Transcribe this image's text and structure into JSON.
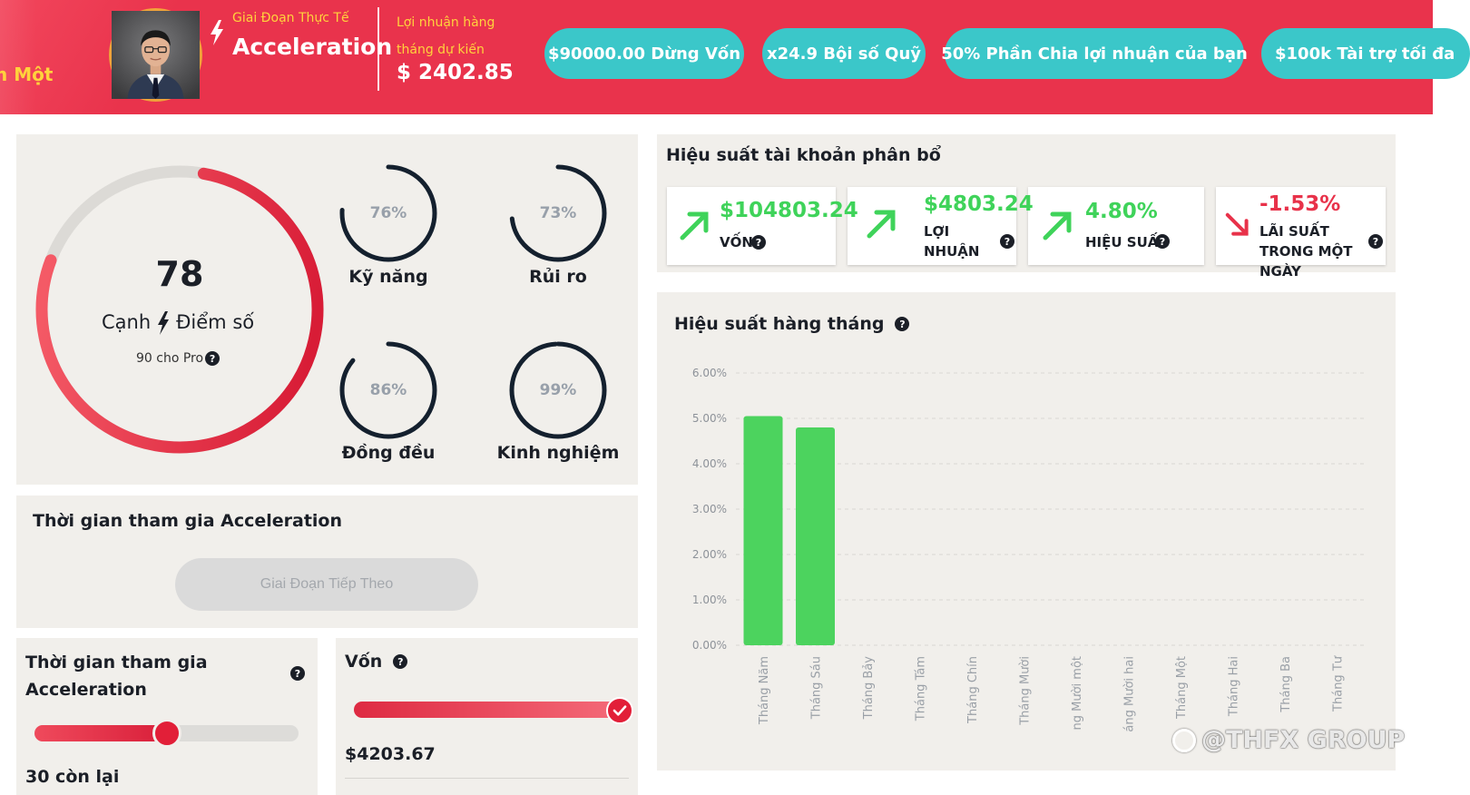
{
  "header": {
    "left_text": "h Một",
    "phase_label": "Giai Đoạn Thực Tế",
    "phase_name": "Acceleration",
    "profit_label": "Lợi nhuận hàng tháng dự kiến",
    "profit_value": "$ 2402.85",
    "pills": [
      "$90000.00 Dừng Vốn",
      "x24.9 Bội số Quỹ",
      "50% Phần Chia lợi nhuận của bạn",
      "$100k Tài trợ tối đa"
    ]
  },
  "score": {
    "value": "78",
    "value_fraction": 0.78,
    "caption_left": "Cạnh",
    "caption_right": "Điểm số",
    "sub": "90 cho Pro",
    "metrics": [
      {
        "label": "Kỹ năng",
        "pct": "76%",
        "fraction": 0.76
      },
      {
        "label": "Rủi ro",
        "pct": "73%",
        "fraction": 0.73
      },
      {
        "label": "Đồng đều",
        "pct": "86%",
        "fraction": 0.86
      },
      {
        "label": "Kinh nghiệm",
        "pct": "99%",
        "fraction": 0.99
      }
    ]
  },
  "join": {
    "title": "Thời gian tham gia Acceleration",
    "next_button": "Giai Đoạn Tiếp Theo"
  },
  "days": {
    "title": "Thời gian tham gia Acceleration",
    "remaining": "30 còn lại",
    "progress_fraction": 0.5
  },
  "capital": {
    "title": "Vốn",
    "value": "$4203.67",
    "progress_fraction": 1.0
  },
  "allocation": {
    "title": "Hiệu suất tài khoản phân bổ",
    "cards": [
      {
        "value": "$104803.24",
        "label": "VỐN",
        "direction": "up",
        "color": "#3fd35a"
      },
      {
        "value": "$4803.24",
        "label": "LỢI NHUẬN",
        "direction": "up",
        "color": "#3fd35a"
      },
      {
        "value": "4.80%",
        "label": "HIỆU SUẤT",
        "direction": "up",
        "color": "#3fd35a"
      },
      {
        "value": "-1.53%",
        "label": "LÃI SUẤT TRONG MỘT NGÀY",
        "direction": "down",
        "color": "#e8324a"
      }
    ]
  },
  "monthly": {
    "title": "Hiệu suất hàng tháng"
  },
  "chart_data": {
    "type": "bar",
    "categories": [
      "Tháng Năm",
      "Tháng Sáu",
      "Tháng Bảy",
      "Tháng Tám",
      "Tháng Chín",
      "Tháng Mười",
      "ng Mười một",
      "áng Mười hai",
      "Tháng Một",
      "Tháng Hai",
      "Tháng Ba",
      "Tháng Tư"
    ],
    "values": [
      5.05,
      4.8,
      0,
      0,
      0,
      0,
      0,
      0,
      0,
      0,
      0,
      0
    ],
    "yticks": [
      "0.00%",
      "1.00%",
      "2.00%",
      "3.00%",
      "4.00%",
      "5.00%",
      "6.00%"
    ],
    "ylim": [
      0,
      6
    ],
    "grid": true,
    "bar_color": "#4cd35e",
    "title": "",
    "xlabel": "",
    "ylabel": ""
  },
  "watermark": "@THFX GROUP",
  "colors": {
    "header_bg": "#e9334c",
    "accent_yellow": "#ffd23c",
    "pill_teal": "#3bc7c9",
    "ring_dark": "#14202e",
    "ring_red": "#e21f38"
  }
}
